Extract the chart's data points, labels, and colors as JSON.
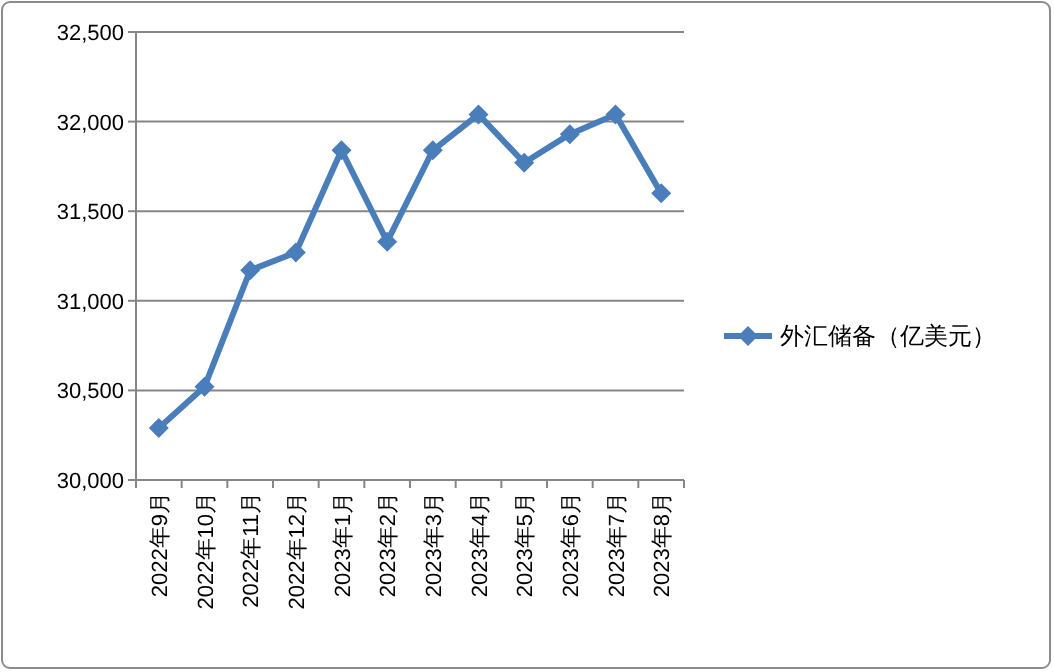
{
  "chart_data": {
    "type": "line",
    "categories": [
      "2022年9月",
      "2022年10月",
      "2022年11月",
      "2022年12月",
      "2023年1月",
      "2023年2月",
      "2023年3月",
      "2023年4月",
      "2023年5月",
      "2023年6月",
      "2023年7月",
      "2023年8月"
    ],
    "series": [
      {
        "name": "外汇储备（亿美元）",
        "color": "#4a7ebb",
        "values": [
          30290,
          30520,
          31170,
          31270,
          31840,
          31330,
          31840,
          32040,
          31770,
          31930,
          32040,
          31600
        ]
      }
    ],
    "ylim": [
      30000,
      32500
    ],
    "yticks": [
      {
        "value": 30000,
        "label": "30,000"
      },
      {
        "value": 30500,
        "label": "30,500"
      },
      {
        "value": 31000,
        "label": "31,000"
      },
      {
        "value": 31500,
        "label": "31,500"
      },
      {
        "value": 32000,
        "label": "32,000"
      },
      {
        "value": 32500,
        "label": "32,500"
      }
    ],
    "grid": "y",
    "legend": "right",
    "marker": "diamond"
  }
}
